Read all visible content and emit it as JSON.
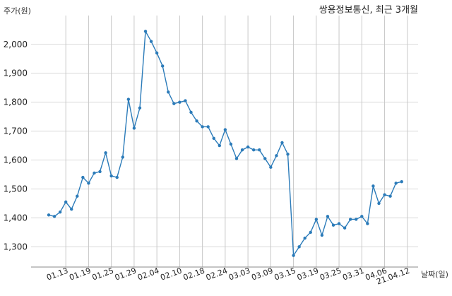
{
  "chart_data": {
    "type": "line",
    "title": "쌍용정보통신, 최근 3개월",
    "ylabel": "주가(원)",
    "xlabel": "날짜(일)",
    "ylim": [
      1230,
      2080
    ],
    "yticks": [
      1300,
      1400,
      1500,
      1600,
      1700,
      1800,
      1900,
      2000
    ],
    "ytick_labels": [
      "1,300",
      "1,400",
      "1,500",
      "1,600",
      "1,700",
      "1,800",
      "1,900",
      "2,000"
    ],
    "xtick_labels": [
      "01.13",
      "01.19",
      "01.25",
      "01.29",
      "02.04",
      "02.10",
      "02.18",
      "02.24",
      "03.03",
      "03.09",
      "03.15",
      "03.19",
      "03.25",
      "03.31",
      "04.06",
      "21.04.12"
    ],
    "xtick_indices": [
      3,
      7,
      11,
      15,
      19,
      23,
      27,
      31,
      35,
      39,
      43,
      47,
      51,
      55,
      59,
      63
    ],
    "grid": true,
    "series": [
      {
        "color": "#2b7bb9",
        "values": [
          1410,
          1405,
          1420,
          1455,
          1430,
          1475,
          1540,
          1520,
          1555,
          1560,
          1625,
          1545,
          1540,
          1610,
          1810,
          1710,
          1780,
          2045,
          2010,
          1970,
          1925,
          1835,
          1795,
          1800,
          1805,
          1765,
          1735,
          1715,
          1715,
          1675,
          1650,
          1705,
          1655,
          1605,
          1635,
          1645,
          1635,
          1635,
          1605,
          1575,
          1615,
          1660,
          1620,
          1270,
          1300,
          1330,
          1350,
          1395,
          1340,
          1405,
          1375,
          1380,
          1365,
          1395,
          1395,
          1405,
          1380,
          1510,
          1450,
          1480,
          1475,
          1520,
          1525
        ]
      }
    ]
  }
}
